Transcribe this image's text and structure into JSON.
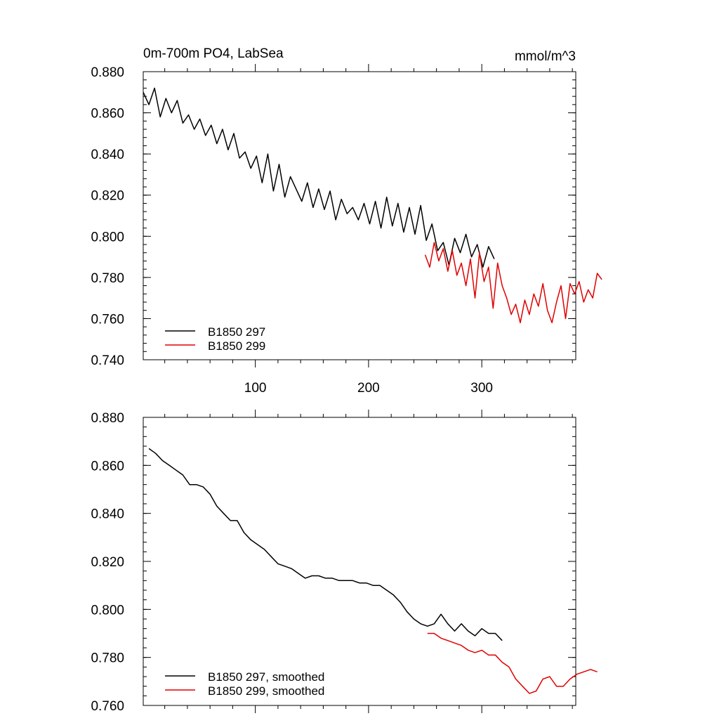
{
  "colors": {
    "series_297": "#000000",
    "series_299": "#e00000",
    "axes": "#000000",
    "background": "#ffffff"
  },
  "chart_data": [
    {
      "type": "line",
      "title": "0m-700m PO4, LabSea",
      "units": "mmol/m^3",
      "xlim": [
        1,
        383
      ],
      "ylim": [
        0.74,
        0.88
      ],
      "x_ticks": [
        100,
        200,
        300
      ],
      "x_tick_labels": [
        "100",
        "200",
        "300"
      ],
      "y_ticks": [
        0.74,
        0.76,
        0.78,
        0.8,
        0.82,
        0.84,
        0.86,
        0.88
      ],
      "y_tick_labels": [
        "0.740",
        "0.760",
        "0.780",
        "0.800",
        "0.820",
        "0.840",
        "0.860",
        "0.880"
      ],
      "legend_position": "bottom-left",
      "series": [
        {
          "name": "B1850 297",
          "color": "#000000",
          "x_start": 1,
          "x_step": 5,
          "values": [
            0.87,
            0.864,
            0.872,
            0.858,
            0.867,
            0.86,
            0.866,
            0.855,
            0.859,
            0.852,
            0.857,
            0.849,
            0.854,
            0.845,
            0.852,
            0.842,
            0.85,
            0.838,
            0.841,
            0.833,
            0.839,
            0.826,
            0.84,
            0.822,
            0.835,
            0.819,
            0.829,
            0.823,
            0.817,
            0.826,
            0.814,
            0.823,
            0.813,
            0.822,
            0.808,
            0.818,
            0.811,
            0.814,
            0.808,
            0.816,
            0.806,
            0.817,
            0.804,
            0.819,
            0.805,
            0.816,
            0.802,
            0.814,
            0.801,
            0.815,
            0.798,
            0.806,
            0.793,
            0.797,
            0.786,
            0.799,
            0.792,
            0.801,
            0.79,
            0.796,
            0.785,
            0.795,
            0.789
          ],
          "labels": [
            "B1850 297"
          ]
        },
        {
          "name": "B1850 299",
          "color": "#e00000",
          "x_start": 250,
          "x_step": 4,
          "values": [
            0.791,
            0.785,
            0.797,
            0.788,
            0.794,
            0.783,
            0.793,
            0.781,
            0.787,
            0.776,
            0.789,
            0.77,
            0.792,
            0.778,
            0.785,
            0.765,
            0.787,
            0.776,
            0.77,
            0.762,
            0.767,
            0.758,
            0.769,
            0.762,
            0.772,
            0.766,
            0.777,
            0.764,
            0.758,
            0.768,
            0.776,
            0.76,
            0.777,
            0.772,
            0.778,
            0.768,
            0.774,
            0.77,
            0.782,
            0.779
          ]
        }
      ],
      "legend": [
        "B1850 297",
        "B1850 299"
      ]
    },
    {
      "type": "line",
      "title": "",
      "xlim": [
        1,
        383
      ],
      "ylim": [
        0.76,
        0.88
      ],
      "x_ticks": [
        100,
        200,
        300
      ],
      "y_ticks": [
        0.76,
        0.78,
        0.8,
        0.82,
        0.84,
        0.86,
        0.88
      ],
      "y_tick_labels": [
        "0.760",
        "0.780",
        "0.800",
        "0.820",
        "0.840",
        "0.860",
        "0.880"
      ],
      "legend_position": "bottom-left",
      "series": [
        {
          "name": "B1850 297, smoothed",
          "color": "#000000",
          "x_start": 6,
          "x_step": 6,
          "values": [
            0.867,
            0.865,
            0.862,
            0.86,
            0.858,
            0.856,
            0.852,
            0.852,
            0.851,
            0.848,
            0.843,
            0.84,
            0.837,
            0.837,
            0.832,
            0.829,
            0.827,
            0.825,
            0.822,
            0.819,
            0.818,
            0.817,
            0.815,
            0.813,
            0.814,
            0.814,
            0.813,
            0.813,
            0.812,
            0.812,
            0.812,
            0.811,
            0.811,
            0.81,
            0.81,
            0.808,
            0.806,
            0.803,
            0.799,
            0.796,
            0.794,
            0.793,
            0.794,
            0.798,
            0.794,
            0.791,
            0.794,
            0.791,
            0.789,
            0.792,
            0.79,
            0.79,
            0.787
          ]
        },
        {
          "name": "B1850 299, smoothed",
          "color": "#e00000",
          "x_start": 252,
          "x_step": 6,
          "values": [
            0.79,
            0.79,
            0.788,
            0.787,
            0.786,
            0.785,
            0.783,
            0.782,
            0.783,
            0.781,
            0.781,
            0.778,
            0.776,
            0.771,
            0.768,
            0.765,
            0.766,
            0.771,
            0.772,
            0.768,
            0.768,
            0.771,
            0.773,
            0.774,
            0.775,
            0.774
          ]
        }
      ],
      "legend": [
        "B1850 297, smoothed",
        "B1850 299, smoothed"
      ]
    }
  ]
}
